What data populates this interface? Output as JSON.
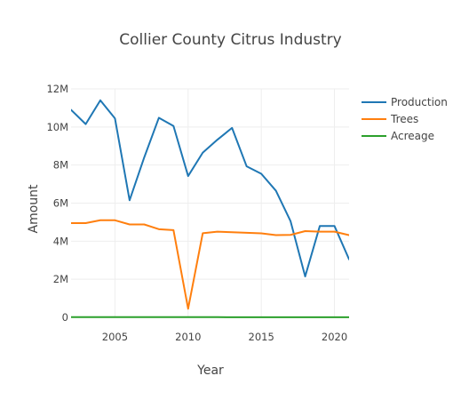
{
  "chart_data": {
    "type": "line",
    "title": "Collier County Citrus Industry",
    "xlabel": "Year",
    "ylabel": "Amount",
    "xlim": [
      2002,
      2021
    ],
    "ylim": [
      0,
      12000000
    ],
    "x_ticks": [
      2005,
      2010,
      2015,
      2020
    ],
    "y_ticks": [
      0,
      2000000,
      4000000,
      6000000,
      8000000,
      10000000,
      12000000
    ],
    "y_tick_labels": [
      "0",
      "2M",
      "4M",
      "6M",
      "8M",
      "10M",
      "12M"
    ],
    "grid": true,
    "legend_position": "top-right",
    "x": [
      2002,
      2003,
      2004,
      2005,
      2006,
      2007,
      2008,
      2009,
      2010,
      2011,
      2012,
      2013,
      2014,
      2015,
      2016,
      2017,
      2018,
      2019,
      2020,
      2021
    ],
    "series": [
      {
        "name": "Production",
        "color": "#1f77b4",
        "values": [
          10900000,
          10150000,
          11400000,
          10450000,
          6150000,
          8400000,
          10480000,
          10050000,
          7420000,
          8650000,
          9330000,
          9950000,
          7930000,
          7540000,
          6650000,
          5050000,
          2150000,
          4800000,
          4800000,
          3050000
        ]
      },
      {
        "name": "Trees",
        "color": "#ff7f0e",
        "values": [
          4950000,
          4950000,
          5100000,
          5100000,
          4880000,
          4880000,
          4630000,
          4580000,
          450000,
          4420000,
          4500000,
          4470000,
          4440000,
          4410000,
          4320000,
          4330000,
          4530000,
          4500000,
          4500000,
          4320000
        ]
      },
      {
        "name": "Acreage",
        "color": "#2ca02c",
        "values": [
          10000,
          10000,
          10000,
          10000,
          9000,
          9000,
          9000,
          9000,
          9000,
          9000,
          9000,
          8500,
          8000,
          8000,
          7500,
          7000,
          6500,
          6000,
          6000,
          6000
        ]
      }
    ]
  }
}
